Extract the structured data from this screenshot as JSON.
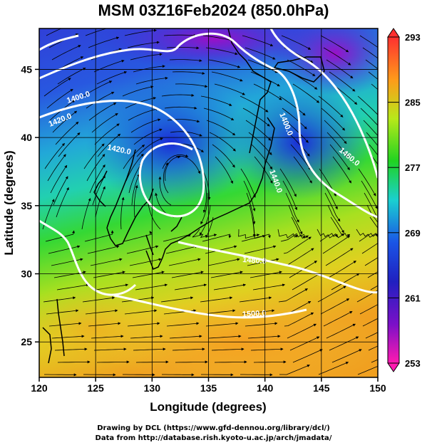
{
  "title": "MSM 03Z16Feb2024 (850.0hPa)",
  "x_axis": {
    "label": "Longitude (degrees)",
    "range": [
      120,
      150
    ],
    "ticks": [
      "120",
      "125",
      "130",
      "135",
      "140",
      "145",
      "150"
    ]
  },
  "y_axis": {
    "label": "Latitude  (degrees)",
    "range": [
      22.4,
      48
    ],
    "ticks": [
      "25",
      "30",
      "35",
      "40",
      "45"
    ]
  },
  "colorbar": {
    "ticks": [
      "293",
      "285",
      "277",
      "269",
      "261",
      "253"
    ],
    "colors": [
      "#ff3030",
      "#ff9a1a",
      "#e8e81a",
      "#21d321",
      "#1ad0d0",
      "#1a55e6",
      "#2020c0",
      "#7a10c8",
      "#ff1ab0"
    ]
  },
  "contour_labels": [
    "1400.0",
    "1420.0",
    "1440.0",
    "1460.0",
    "1480.0",
    "1500.0"
  ],
  "credits": {
    "line1": "Drawing by DCL (https://www.gfd-dennou.org/library/dcl/)",
    "line2": "Data from http://database.rish.kyoto-u.ac.jp/arch/jmadata/"
  }
}
